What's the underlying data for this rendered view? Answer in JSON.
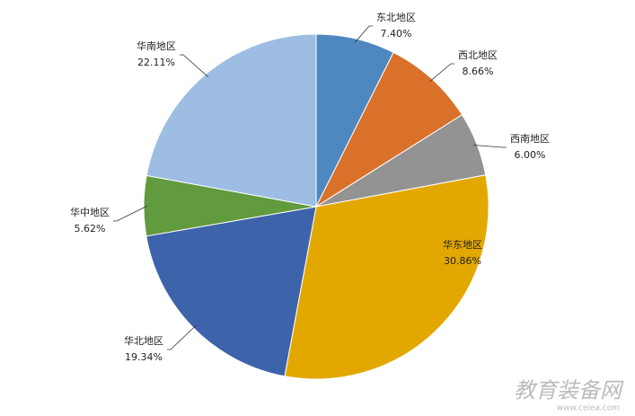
{
  "chart_data": {
    "type": "pie",
    "categories": [
      "东北地区",
      "西北地区",
      "西南地区",
      "华东地区",
      "华北地区",
      "华中地区",
      "华南地区"
    ],
    "values": [
      7.4,
      8.66,
      6.0,
      30.86,
      19.34,
      5.62,
      22.11
    ],
    "value_labels": [
      "7.40%",
      "8.66%",
      "6.00%",
      "30.86%",
      "19.34%",
      "5.62%",
      "22.11%"
    ],
    "colors": [
      "#4f88c0",
      "#d9712b",
      "#939393",
      "#e3a800",
      "#3d63ab",
      "#629a3e",
      "#9dbde3"
    ]
  },
  "watermark": {
    "name": "教育装备网",
    "url": "www.ceiea.com"
  }
}
